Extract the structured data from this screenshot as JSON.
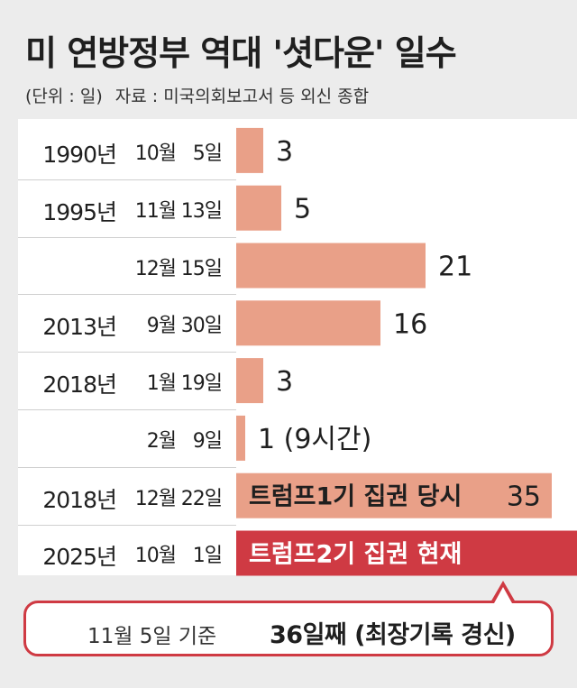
{
  "title": "미 연방정부 역대 '셧다운' 일수",
  "unit_label": "(단위 : 일)",
  "source_label": "자료 : 미국의회보고서 등 외신 종합",
  "chart_data": {
    "type": "bar",
    "orientation": "horizontal",
    "title": "미 연방정부 역대 '셧다운' 일수",
    "unit": "일",
    "categories": [
      "1990년 10월 5일",
      "1995년 11월 13일",
      "12월 15일",
      "2013년 9월 30일",
      "2018년 1월 19일",
      "2월 9일",
      "2018년 12월 22일",
      "2025년 10월 1일"
    ],
    "rows": [
      {
        "year": "1990년",
        "month": "10월",
        "day": "5일",
        "value": 3,
        "label": "3",
        "note": "",
        "color": "#e9a088"
      },
      {
        "year": "1995년",
        "month": "11월",
        "day": "13일",
        "value": 5,
        "label": "5",
        "note": "",
        "color": "#e9a088"
      },
      {
        "year": "",
        "month": "12월",
        "day": "15일",
        "value": 21,
        "label": "21",
        "note": "",
        "color": "#e9a088"
      },
      {
        "year": "2013년",
        "month": "9월",
        "day": "30일",
        "value": 16,
        "label": "16",
        "note": "",
        "color": "#e9a088"
      },
      {
        "year": "2018년",
        "month": "1월",
        "day": "19일",
        "value": 3,
        "label": "3",
        "note": "",
        "color": "#e9a088"
      },
      {
        "year": "",
        "month": "2월",
        "day": "9일",
        "value": 1,
        "label": "1 (9시간)",
        "note": "",
        "color": "#e9a088"
      },
      {
        "year": "2018년",
        "month": "12월",
        "day": "22일",
        "value": 35,
        "label": "35",
        "note": "트럼프1기 집권 당시",
        "color": "#e9a088"
      },
      {
        "year": "2025년",
        "month": "10월",
        "day": "1일",
        "value": 36,
        "label": "",
        "note": "트럼프2기 집권 현재",
        "color": "#cf3a43"
      }
    ],
    "xlim": [
      0,
      36
    ],
    "grid": false,
    "legend": "none"
  },
  "callout": {
    "date_text": "11월 5일 기준",
    "main_text": "36일째 (최장기록 경신)"
  },
  "colors": {
    "background": "#ececec",
    "panel": "#ffffff",
    "bar": "#e9a088",
    "highlight": "#cf3a43"
  }
}
